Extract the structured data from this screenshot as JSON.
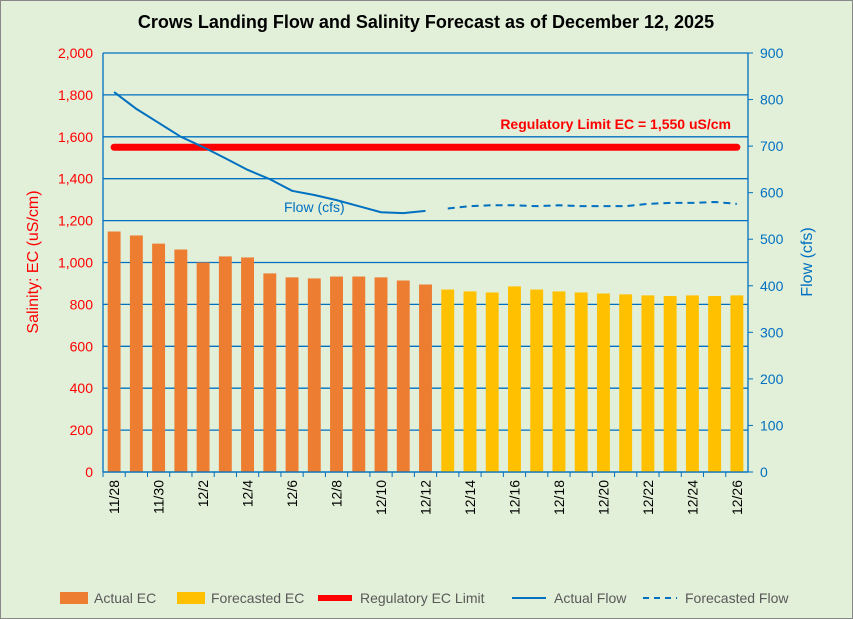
{
  "chart_data": {
    "type": "bar+line",
    "title": "Crows Landing Flow and Salinity Forecast as of December 12, 2025",
    "ylabel_left": "Salinity: EC (uS/cm)",
    "ylabel_right": "Flow (cfs)",
    "ylim_left": [
      0,
      2000
    ],
    "ylim_right": [
      0,
      900
    ],
    "yticks_left": [
      "0",
      "200",
      "400",
      "600",
      "800",
      "1,000",
      "1,200",
      "1,400",
      "1,600",
      "1,800",
      "2,000"
    ],
    "yticks_right": [
      "0",
      "100",
      "200",
      "300",
      "400",
      "500",
      "600",
      "700",
      "800",
      "900"
    ],
    "grid": true,
    "legend_placement": "bottom",
    "categories": [
      "11/28",
      "11/29",
      "11/30",
      "12/1",
      "12/2",
      "12/3",
      "12/4",
      "12/5",
      "12/6",
      "12/7",
      "12/8",
      "12/9",
      "12/10",
      "12/11",
      "12/12",
      "12/13",
      "12/14",
      "12/15",
      "12/16",
      "12/17",
      "12/18",
      "12/19",
      "12/20",
      "12/21",
      "12/22",
      "12/23",
      "12/24",
      "12/25",
      "12/26"
    ],
    "xtick_labels": [
      "11/28",
      "11/30",
      "12/2",
      "12/4",
      "12/6",
      "12/8",
      "12/10",
      "12/12",
      "12/14",
      "12/16",
      "12/18",
      "12/20",
      "12/22",
      "12/24",
      "12/26"
    ],
    "series": [
      {
        "name": "Actual EC",
        "type": "bar",
        "color": "#ed7d31",
        "values": [
          1148,
          1129,
          1090,
          1062,
          1000,
          1029,
          1024,
          948,
          929,
          924,
          933,
          933,
          929,
          914,
          895,
          null,
          null,
          null,
          null,
          null,
          null,
          null,
          null,
          null,
          null,
          null,
          null,
          null,
          null
        ]
      },
      {
        "name": "Forecasted EC",
        "type": "bar",
        "color": "#ffc000",
        "values": [
          null,
          null,
          null,
          null,
          null,
          null,
          null,
          null,
          null,
          null,
          null,
          null,
          null,
          null,
          null,
          871,
          862,
          857,
          886,
          871,
          862,
          857,
          852,
          848,
          843,
          840,
          843,
          840,
          843
        ]
      },
      {
        "name": "Regulatory EC Limit",
        "type": "line",
        "color": "#ff0000",
        "value": 1550
      },
      {
        "name": "Actual Flow",
        "type": "line",
        "axis": "right",
        "color": "#0070c0",
        "values": [
          816,
          780,
          750,
          720,
          698,
          674,
          649,
          629,
          604,
          595,
          584,
          571,
          558,
          556,
          561,
          null,
          null,
          null,
          null,
          null,
          null,
          null,
          null,
          null,
          null,
          null,
          null,
          null,
          null
        ]
      },
      {
        "name": "Forecasted Flow",
        "type": "line",
        "axis": "right",
        "dashed": true,
        "color": "#0070c0",
        "values": [
          null,
          null,
          null,
          null,
          null,
          null,
          null,
          null,
          null,
          null,
          null,
          null,
          null,
          null,
          null,
          566,
          571,
          573,
          573,
          571,
          573,
          571,
          571,
          571,
          576,
          578,
          578,
          580,
          576
        ]
      }
    ],
    "annotations": {
      "limit_label": "Regulatory Limit EC = 1,550 uS/cm",
      "flow_label": "Flow (cfs)"
    },
    "background": "#e2efd9"
  }
}
